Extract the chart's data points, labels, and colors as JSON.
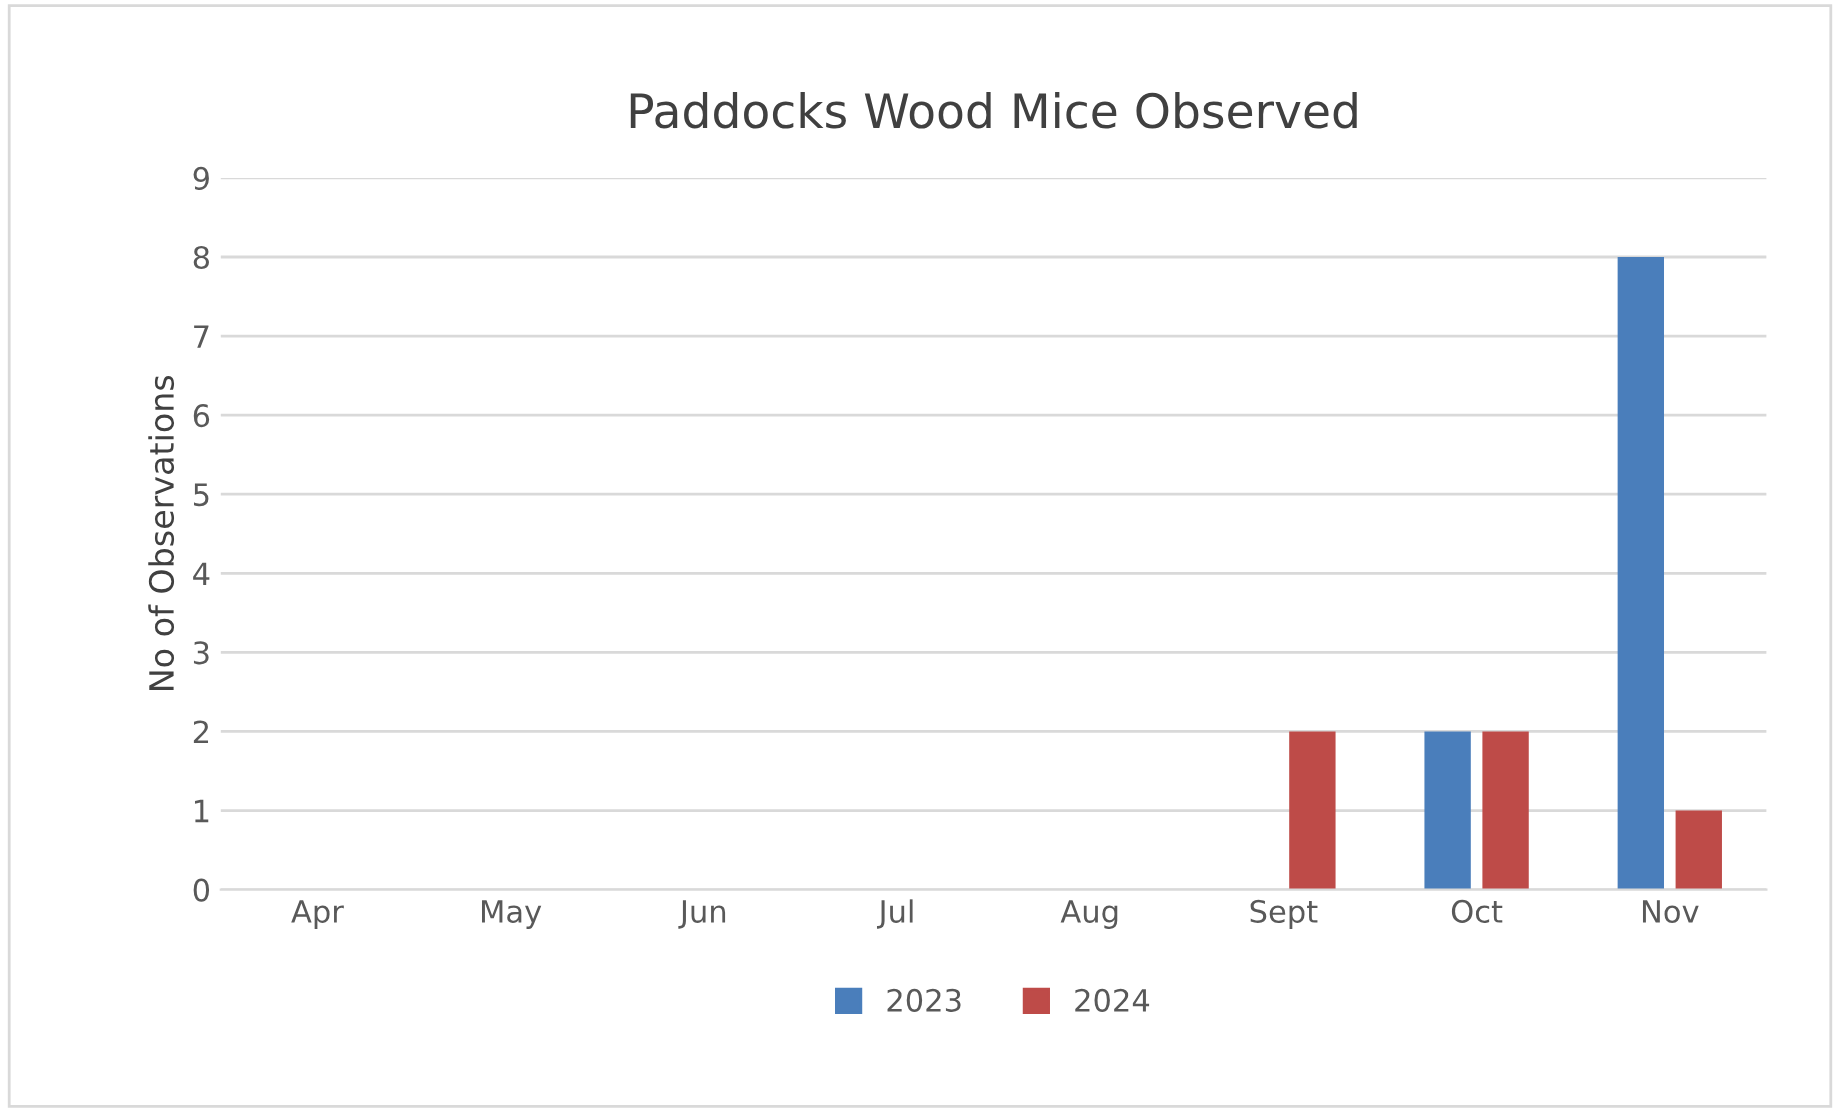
{
  "chart_data": {
    "type": "bar",
    "title": "Paddocks Wood Mice Observed",
    "ylabel": "No of Observations",
    "categories": [
      "Apr",
      "May",
      "Jun",
      "Jul",
      "Aug",
      "Sept",
      "Oct",
      "Nov"
    ],
    "series": [
      {
        "name": "2023",
        "color": "#4a7ebb",
        "values": [
          0,
          0,
          0,
          0,
          0,
          0,
          2,
          8
        ]
      },
      {
        "name": "2024",
        "color": "#be4b48",
        "values": [
          0,
          0,
          0,
          0,
          0,
          2,
          2,
          1
        ]
      }
    ],
    "ylim": [
      0,
      9
    ],
    "yticks": [
      0,
      1,
      2,
      3,
      4,
      5,
      6,
      7,
      8,
      9
    ],
    "grid": "y",
    "legend": "bottom"
  }
}
